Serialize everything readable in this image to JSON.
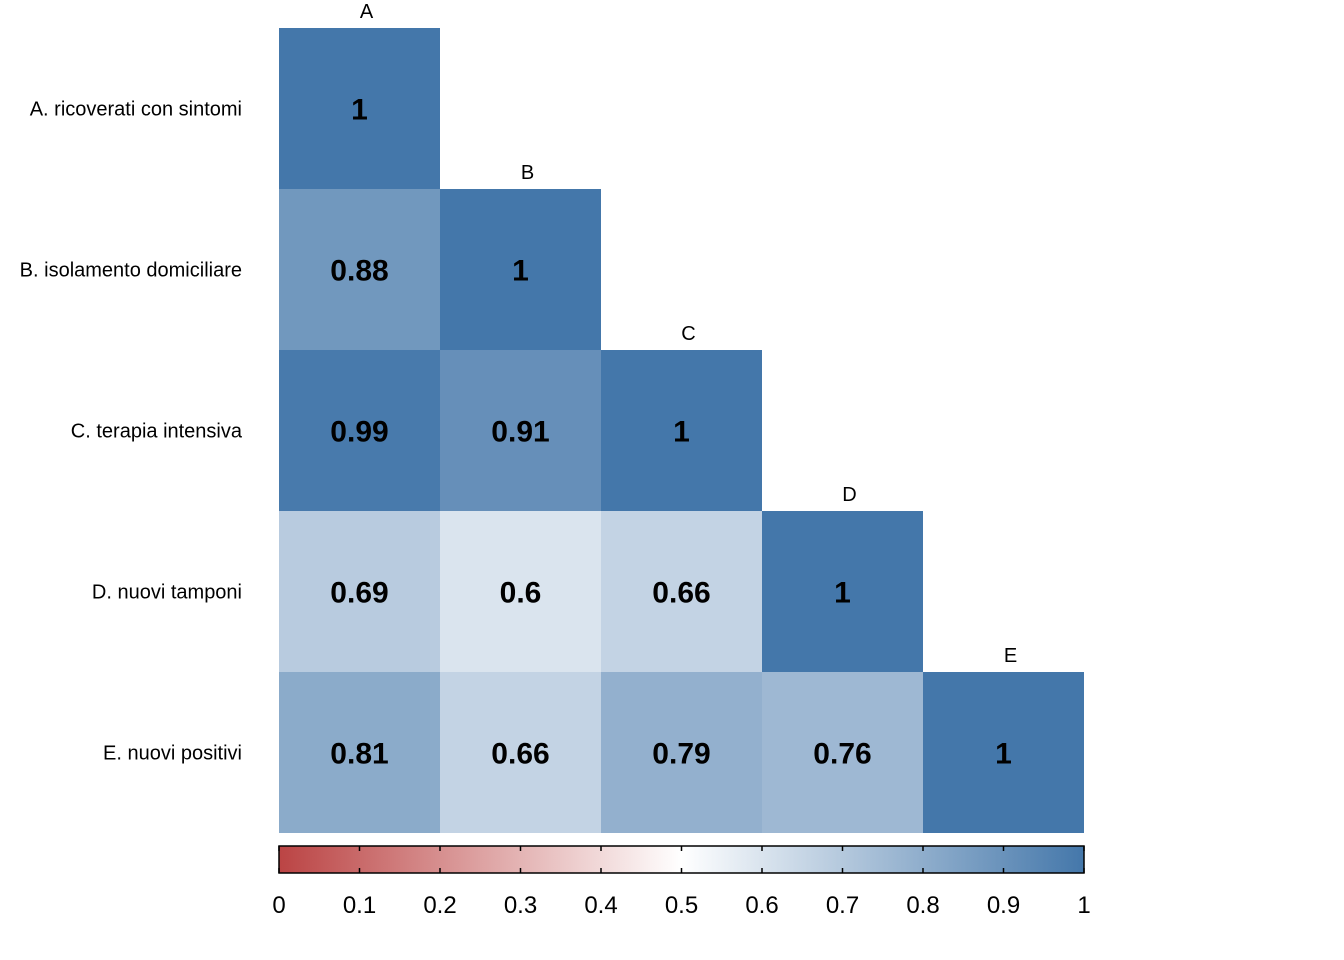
{
  "chart_data": {
    "type": "heatmap",
    "title": "",
    "variables": [
      "A",
      "B",
      "C",
      "D",
      "E"
    ],
    "row_labels": [
      "A. ricoverati con sintomi",
      "B. isolamento domiciliare",
      "C. terapia intensiva",
      "D. nuovi tamponi",
      "E. nuovi positivi"
    ],
    "matrix": [
      [
        1,
        null,
        null,
        null,
        null
      ],
      [
        0.88,
        1,
        null,
        null,
        null
      ],
      [
        0.99,
        0.91,
        1,
        null,
        null
      ],
      [
        0.69,
        0.6,
        0.66,
        1,
        null
      ],
      [
        0.81,
        0.66,
        0.79,
        0.76,
        1
      ]
    ],
    "color_scale": {
      "range": [
        0,
        1
      ],
      "low_color": "#bb4444",
      "mid_color": "#ffffff",
      "high_color": "#4477aa",
      "ticks": [
        "0",
        "0.1",
        "0.2",
        "0.3",
        "0.4",
        "0.5",
        "0.6",
        "0.7",
        "0.8",
        "0.9",
        "1"
      ]
    },
    "layout": "lower-triangle",
    "legend_position": "bottom"
  }
}
